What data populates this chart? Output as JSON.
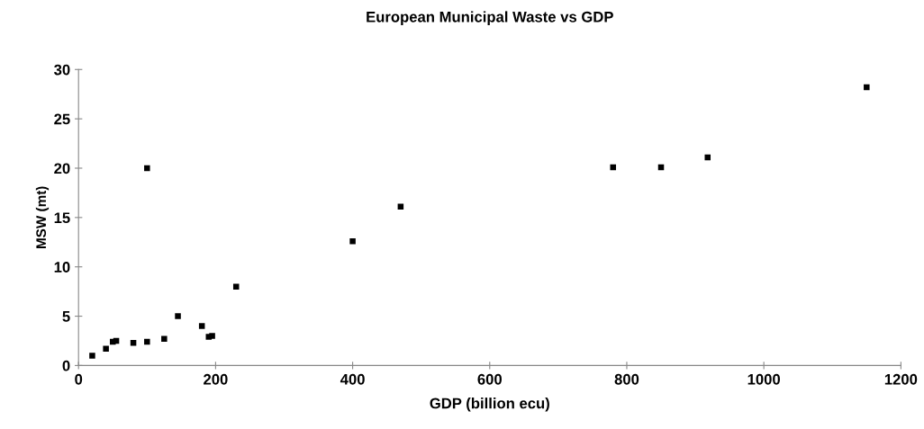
{
  "chart_data": {
    "type": "scatter",
    "title": "European Municipal Waste vs GDP",
    "xlabel": "GDP (billion ecu)",
    "ylabel": "MSW (mt)",
    "x": [
      20,
      40,
      50,
      55,
      80,
      100,
      125,
      145,
      180,
      190,
      195,
      100,
      230,
      400,
      470,
      780,
      850,
      918,
      1150
    ],
    "values": [
      1.0,
      1.7,
      2.4,
      2.5,
      2.3,
      2.4,
      2.7,
      5.0,
      4.0,
      2.9,
      3.0,
      20,
      8,
      12.6,
      16.1,
      20.1,
      20.1,
      21.1,
      28.2
    ],
    "color": "#000000",
    "marker": "square",
    "xlim": [
      0,
      1200
    ],
    "ylim": [
      0,
      30
    ],
    "xticks": [
      0,
      200,
      400,
      600,
      800,
      1000,
      1200
    ],
    "yticks": [
      0,
      5,
      10,
      15,
      20,
      25,
      30
    ],
    "grid": false,
    "legend": false
  }
}
